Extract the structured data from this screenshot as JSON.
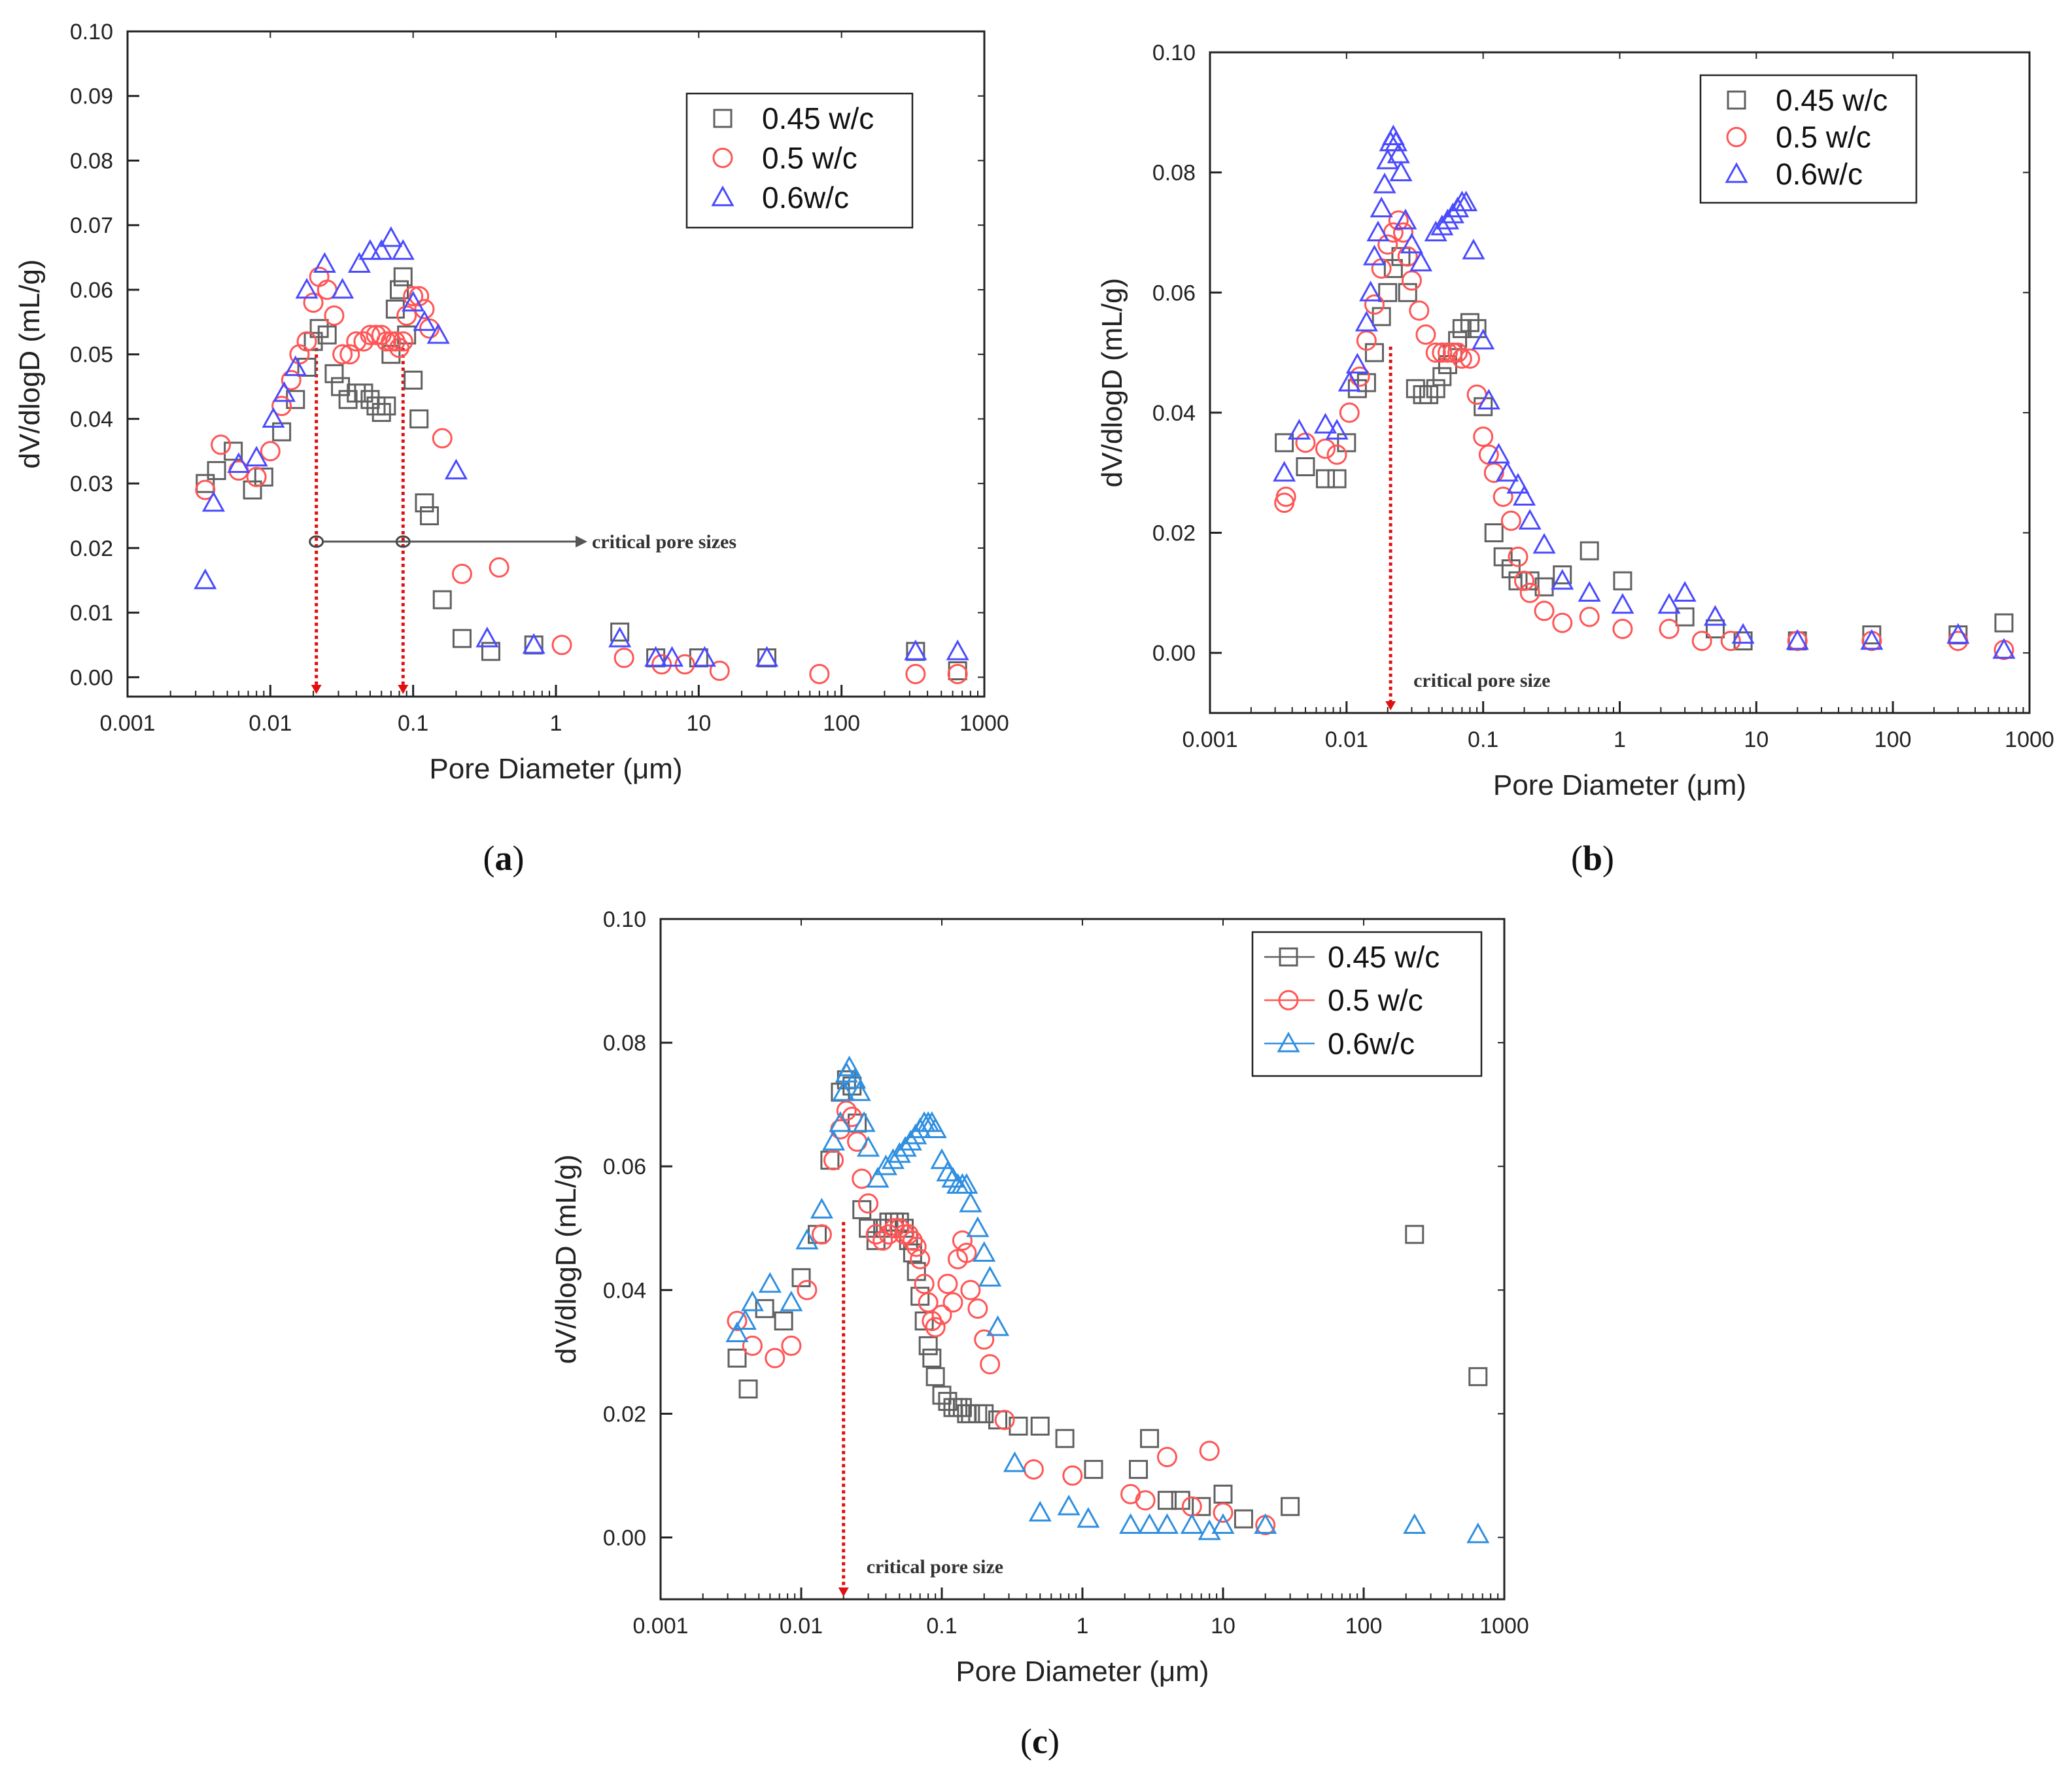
{
  "colors": {
    "s045": "#606060",
    "s05": "#ff5555",
    "s06": "#4a4aff",
    "s06c": "#2f8fe0",
    "crit": "#e01010",
    "arrow": "#555555"
  },
  "chart_data": [
    {
      "id": "a",
      "type": "scatter",
      "caption": "a",
      "xlabel": "Pore Diameter (μm)",
      "ylabel": "dV/dlogD (mL/g)",
      "xscale": "log",
      "xlim": [
        0.001,
        1000
      ],
      "ylim": [
        -0.003,
        0.1
      ],
      "yticks": [
        "0.00",
        "0.01",
        "0.02",
        "0.03",
        "0.04",
        "0.05",
        "0.06",
        "0.07",
        "0.08",
        "0.09",
        "0.10"
      ],
      "xticks": [
        "0.001",
        "0.01",
        "0.1",
        "1",
        "10",
        "100",
        "1000"
      ],
      "legend_position": "top-right",
      "legend_lines": false,
      "critical_sizes": [
        0.021,
        0.085
      ],
      "annotation": "critical pore sizes",
      "series": [
        {
          "name": "0.45 w/c",
          "marker": "square",
          "color": "#606060",
          "x": [
            0.0035,
            0.0042,
            0.0055,
            0.0075,
            0.009,
            0.012,
            0.015,
            0.018,
            0.02,
            0.022,
            0.025,
            0.028,
            0.031,
            0.035,
            0.04,
            0.045,
            0.05,
            0.055,
            0.06,
            0.065,
            0.07,
            0.075,
            0.08,
            0.085,
            0.09,
            0.1,
            0.11,
            0.12,
            0.13,
            0.16,
            0.22,
            0.35,
            0.7,
            2.8,
            5,
            10,
            30,
            330,
            650
          ],
          "y": [
            0.03,
            0.032,
            0.035,
            0.029,
            0.031,
            0.038,
            0.043,
            0.048,
            0.052,
            0.054,
            0.053,
            0.047,
            0.045,
            0.043,
            0.044,
            0.044,
            0.043,
            0.042,
            0.041,
            0.042,
            0.05,
            0.057,
            0.06,
            0.062,
            0.053,
            0.046,
            0.04,
            0.027,
            0.025,
            0.012,
            0.006,
            0.004,
            0.005,
            0.007,
            0.003,
            0.003,
            0.003,
            0.004,
            0.001
          ]
        },
        {
          "name": "0.5 w/c",
          "marker": "circle",
          "color": "#ff5555",
          "x": [
            0.0035,
            0.0045,
            0.006,
            0.008,
            0.01,
            0.012,
            0.014,
            0.016,
            0.018,
            0.02,
            0.022,
            0.025,
            0.028,
            0.032,
            0.036,
            0.04,
            0.045,
            0.05,
            0.055,
            0.06,
            0.065,
            0.07,
            0.075,
            0.08,
            0.085,
            0.09,
            0.1,
            0.11,
            0.12,
            0.13,
            0.16,
            0.22,
            0.4,
            1.1,
            3,
            5.5,
            8,
            14,
            70,
            330,
            650
          ],
          "y": [
            0.029,
            0.036,
            0.032,
            0.031,
            0.035,
            0.042,
            0.046,
            0.05,
            0.052,
            0.058,
            0.062,
            0.06,
            0.056,
            0.05,
            0.05,
            0.052,
            0.052,
            0.053,
            0.053,
            0.053,
            0.052,
            0.052,
            0.052,
            0.051,
            0.052,
            0.056,
            0.059,
            0.059,
            0.057,
            0.054,
            0.037,
            0.016,
            0.017,
            0.005,
            0.003,
            0.002,
            0.002,
            0.001,
            0.0005,
            0.0005,
            0.0005
          ]
        },
        {
          "name": "0.6w/c",
          "marker": "triangle",
          "color": "#4a4aff",
          "x": [
            0.0035,
            0.004,
            0.006,
            0.008,
            0.0105,
            0.0125,
            0.015,
            0.018,
            0.024,
            0.032,
            0.042,
            0.05,
            0.06,
            0.07,
            0.085,
            0.1,
            0.12,
            0.15,
            0.2,
            0.33,
            0.7,
            2.8,
            5,
            6.5,
            11,
            30,
            330,
            650
          ],
          "y": [
            0.015,
            0.027,
            0.033,
            0.034,
            0.04,
            0.044,
            0.048,
            0.06,
            0.064,
            0.06,
            0.064,
            0.066,
            0.066,
            0.068,
            0.066,
            0.058,
            0.055,
            0.053,
            0.032,
            0.006,
            0.005,
            0.006,
            0.003,
            0.003,
            0.003,
            0.003,
            0.004,
            0.004
          ]
        }
      ]
    },
    {
      "id": "b",
      "type": "scatter",
      "caption": "b",
      "xlabel": "Pore Diameter (μm)",
      "ylabel": "dV/dlogD (mL/g)",
      "xscale": "log",
      "xlim": [
        0.001,
        1000
      ],
      "ylim": [
        -0.01,
        0.1
      ],
      "yticks": [
        "0.00",
        "0.02",
        "0.04",
        "0.06",
        "0.08",
        "0.10"
      ],
      "xticks": [
        "0.001",
        "0.01",
        "0.1",
        "1",
        "10",
        "100",
        "1000"
      ],
      "legend_position": "top-right",
      "legend_lines": false,
      "critical_sizes": [
        0.021
      ],
      "annotation": "critical pore size",
      "series": [
        {
          "name": "0.45 w/c",
          "marker": "square",
          "color": "#606060",
          "x": [
            0.0035,
            0.005,
            0.007,
            0.0085,
            0.01,
            0.012,
            0.014,
            0.016,
            0.018,
            0.02,
            0.022,
            0.025,
            0.028,
            0.032,
            0.036,
            0.04,
            0.045,
            0.05,
            0.055,
            0.06,
            0.065,
            0.07,
            0.08,
            0.09,
            0.1,
            0.12,
            0.14,
            0.16,
            0.18,
            0.22,
            0.28,
            0.38,
            0.6,
            1.05,
            3,
            5,
            8,
            20,
            70,
            300,
            650
          ],
          "y": [
            0.035,
            0.031,
            0.029,
            0.029,
            0.035,
            0.044,
            0.045,
            0.05,
            0.056,
            0.06,
            0.064,
            0.066,
            0.06,
            0.044,
            0.043,
            0.043,
            0.044,
            0.046,
            0.048,
            0.05,
            0.052,
            0.054,
            0.055,
            0.054,
            0.041,
            0.02,
            0.016,
            0.014,
            0.012,
            0.012,
            0.011,
            0.013,
            0.017,
            0.012,
            0.006,
            0.004,
            0.002,
            0.002,
            0.003,
            0.003,
            0.005
          ]
        },
        {
          "name": "0.5 w/c",
          "marker": "circle",
          "color": "#ff5555",
          "x": [
            0.0035,
            0.0036,
            0.005,
            0.007,
            0.0085,
            0.0105,
            0.0125,
            0.014,
            0.016,
            0.018,
            0.02,
            0.022,
            0.024,
            0.026,
            0.028,
            0.03,
            0.034,
            0.038,
            0.045,
            0.05,
            0.055,
            0.06,
            0.065,
            0.07,
            0.08,
            0.09,
            0.1,
            0.11,
            0.12,
            0.14,
            0.16,
            0.18,
            0.2,
            0.22,
            0.28,
            0.38,
            0.6,
            1.05,
            2.3,
            4,
            6.5,
            20,
            70,
            300,
            650
          ],
          "y": [
            0.025,
            0.026,
            0.035,
            0.034,
            0.033,
            0.04,
            0.046,
            0.052,
            0.058,
            0.064,
            0.068,
            0.07,
            0.072,
            0.07,
            0.066,
            0.062,
            0.057,
            0.053,
            0.05,
            0.05,
            0.05,
            0.05,
            0.05,
            0.049,
            0.049,
            0.043,
            0.036,
            0.033,
            0.03,
            0.026,
            0.022,
            0.016,
            0.012,
            0.01,
            0.007,
            0.005,
            0.006,
            0.004,
            0.004,
            0.002,
            0.002,
            0.002,
            0.002,
            0.002,
            0.0005
          ]
        },
        {
          "name": "0.6w/c",
          "marker": "triangle",
          "color": "#4a4aff",
          "x": [
            0.0035,
            0.0045,
            0.007,
            0.0085,
            0.0105,
            0.012,
            0.014,
            0.015,
            0.016,
            0.017,
            0.018,
            0.019,
            0.02,
            0.021,
            0.022,
            0.023,
            0.024,
            0.025,
            0.027,
            0.03,
            0.035,
            0.045,
            0.05,
            0.055,
            0.06,
            0.065,
            0.07,
            0.075,
            0.085,
            0.1,
            0.11,
            0.13,
            0.15,
            0.18,
            0.2,
            0.22,
            0.28,
            0.38,
            0.6,
            1.05,
            2.3,
            3,
            5,
            8,
            20,
            70,
            300,
            650
          ],
          "y": [
            0.03,
            0.037,
            0.038,
            0.037,
            0.045,
            0.048,
            0.055,
            0.06,
            0.066,
            0.07,
            0.074,
            0.078,
            0.082,
            0.085,
            0.086,
            0.085,
            0.083,
            0.08,
            0.072,
            0.068,
            0.065,
            0.07,
            0.071,
            0.072,
            0.073,
            0.074,
            0.075,
            0.075,
            0.067,
            0.052,
            0.042,
            0.033,
            0.03,
            0.028,
            0.026,
            0.022,
            0.018,
            0.012,
            0.01,
            0.008,
            0.008,
            0.01,
            0.006,
            0.003,
            0.002,
            0.002,
            0.003,
            0.0005
          ]
        }
      ]
    },
    {
      "id": "c",
      "type": "scatter",
      "caption": "c",
      "xlabel": "Pore Diameter (μm)",
      "ylabel": "dV/dlogD (mL/g)",
      "xscale": "log",
      "xlim": [
        0.001,
        1000
      ],
      "ylim": [
        -0.01,
        0.1
      ],
      "yticks": [
        "0.00",
        "0.02",
        "0.04",
        "0.06",
        "0.08",
        "0.10"
      ],
      "xticks": [
        "0.001",
        "0.01",
        "0.1",
        "1",
        "10",
        "100",
        "1000"
      ],
      "legend_position": "top-right",
      "legend_lines": true,
      "critical_sizes": [
        0.02
      ],
      "annotation": "critical pore size",
      "series": [
        {
          "name": "0.45 w/c",
          "marker": "square",
          "color": "#606060",
          "x": [
            0.0035,
            0.0042,
            0.0055,
            0.0075,
            0.01,
            0.013,
            0.016,
            0.019,
            0.021,
            0.023,
            0.025,
            0.027,
            0.03,
            0.034,
            0.038,
            0.042,
            0.046,
            0.05,
            0.054,
            0.058,
            0.062,
            0.066,
            0.07,
            0.075,
            0.08,
            0.085,
            0.09,
            0.1,
            0.11,
            0.12,
            0.13,
            0.14,
            0.15,
            0.16,
            0.18,
            0.2,
            0.25,
            0.35,
            0.5,
            0.75,
            1.2,
            2.5,
            3,
            4,
            5,
            7,
            10,
            14,
            30,
            230,
            650
          ],
          "y": [
            0.029,
            0.024,
            0.037,
            0.035,
            0.042,
            0.049,
            0.061,
            0.072,
            0.074,
            0.073,
            0.067,
            0.053,
            0.05,
            0.048,
            0.05,
            0.051,
            0.051,
            0.051,
            0.05,
            0.048,
            0.046,
            0.043,
            0.039,
            0.035,
            0.031,
            0.029,
            0.026,
            0.023,
            0.022,
            0.021,
            0.021,
            0.021,
            0.02,
            0.02,
            0.02,
            0.02,
            0.019,
            0.018,
            0.018,
            0.016,
            0.011,
            0.011,
            0.016,
            0.006,
            0.006,
            0.005,
            0.007,
            0.003,
            0.005,
            0.049,
            0.026
          ]
        },
        {
          "name": "0.5 w/c",
          "marker": "circle",
          "color": "#ff5555",
          "x": [
            0.0035,
            0.0045,
            0.0065,
            0.0085,
            0.011,
            0.014,
            0.017,
            0.019,
            0.021,
            0.023,
            0.025,
            0.027,
            0.03,
            0.034,
            0.038,
            0.042,
            0.046,
            0.05,
            0.054,
            0.058,
            0.062,
            0.066,
            0.07,
            0.075,
            0.08,
            0.085,
            0.09,
            0.1,
            0.11,
            0.12,
            0.13,
            0.14,
            0.15,
            0.16,
            0.18,
            0.2,
            0.22,
            0.28,
            0.45,
            0.85,
            2.2,
            2.8,
            4,
            6,
            8,
            10,
            20
          ],
          "y": [
            0.035,
            0.031,
            0.029,
            0.031,
            0.04,
            0.049,
            0.061,
            0.066,
            0.069,
            0.068,
            0.064,
            0.058,
            0.054,
            0.049,
            0.048,
            0.049,
            0.05,
            0.05,
            0.049,
            0.049,
            0.048,
            0.047,
            0.045,
            0.041,
            0.038,
            0.035,
            0.034,
            0.036,
            0.041,
            0.038,
            0.045,
            0.048,
            0.046,
            0.04,
            0.037,
            0.032,
            0.028,
            0.019,
            0.011,
            0.01,
            0.007,
            0.006,
            0.013,
            0.005,
            0.014,
            0.004,
            0.002
          ]
        },
        {
          "name": "0.6w/c",
          "marker": "triangle",
          "color": "#2f8fe0",
          "x": [
            0.0035,
            0.004,
            0.0045,
            0.006,
            0.0085,
            0.011,
            0.014,
            0.017,
            0.019,
            0.02,
            0.021,
            0.022,
            0.024,
            0.026,
            0.028,
            0.03,
            0.035,
            0.04,
            0.045,
            0.05,
            0.055,
            0.06,
            0.065,
            0.07,
            0.075,
            0.08,
            0.085,
            0.09,
            0.1,
            0.11,
            0.12,
            0.13,
            0.14,
            0.15,
            0.16,
            0.18,
            0.2,
            0.22,
            0.25,
            0.33,
            0.5,
            0.8,
            1.1,
            2.2,
            3,
            4,
            6,
            8,
            10,
            20,
            230,
            650
          ],
          "y": [
            0.033,
            0.035,
            0.038,
            0.041,
            0.038,
            0.048,
            0.053,
            0.064,
            0.067,
            0.072,
            0.075,
            0.076,
            0.074,
            0.072,
            0.067,
            0.063,
            0.058,
            0.06,
            0.061,
            0.062,
            0.063,
            0.064,
            0.065,
            0.066,
            0.067,
            0.067,
            0.067,
            0.066,
            0.061,
            0.059,
            0.058,
            0.057,
            0.057,
            0.057,
            0.054,
            0.05,
            0.046,
            0.042,
            0.034,
            0.012,
            0.004,
            0.005,
            0.003,
            0.002,
            0.002,
            0.002,
            0.002,
            0.001,
            0.002,
            0.002,
            0.002,
            0.0005
          ]
        }
      ]
    }
  ]
}
